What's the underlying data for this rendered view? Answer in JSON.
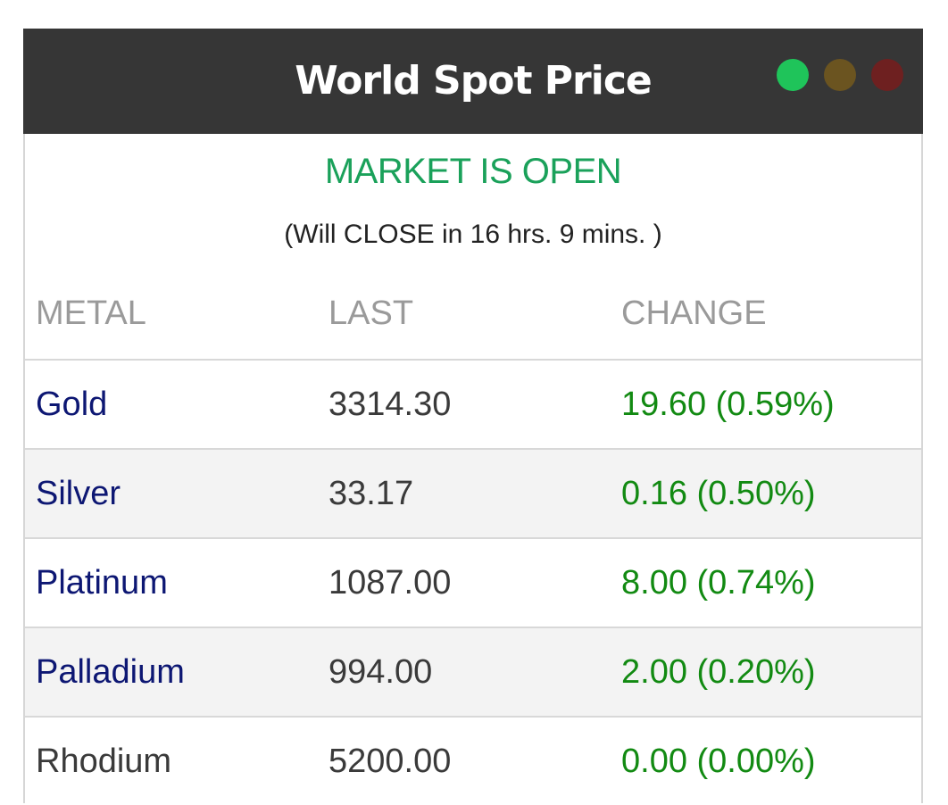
{
  "header": {
    "title": "World Spot Price",
    "dots": [
      {
        "name": "green",
        "color": "#1fc45a"
      },
      {
        "name": "olive",
        "color": "#6b5420"
      },
      {
        "name": "red",
        "color": "#6e2020"
      }
    ]
  },
  "market": {
    "status": "MARKET IS OPEN",
    "status_color": "#1aa15a",
    "countdown": "(Will CLOSE in 16 hrs. 9 mins. )"
  },
  "table": {
    "columns": [
      "METAL",
      "LAST",
      "CHANGE"
    ],
    "rows": [
      {
        "metal": "Gold",
        "last": "3314.30",
        "change": "19.60 (0.59%)",
        "link": true
      },
      {
        "metal": "Silver",
        "last": "33.17",
        "change": "0.16 (0.50%)",
        "link": true
      },
      {
        "metal": "Platinum",
        "last": "1087.00",
        "change": "8.00 (0.74%)",
        "link": true
      },
      {
        "metal": "Palladium",
        "last": "994.00",
        "change": "2.00 (0.20%)",
        "link": true
      },
      {
        "metal": "Rhodium",
        "last": "5200.00",
        "change": "0.00 (0.00%)",
        "link": false
      }
    ]
  },
  "colors": {
    "link": "#0d1773",
    "plain_text": "#3a3a3a",
    "positive_change": "#128a12"
  }
}
